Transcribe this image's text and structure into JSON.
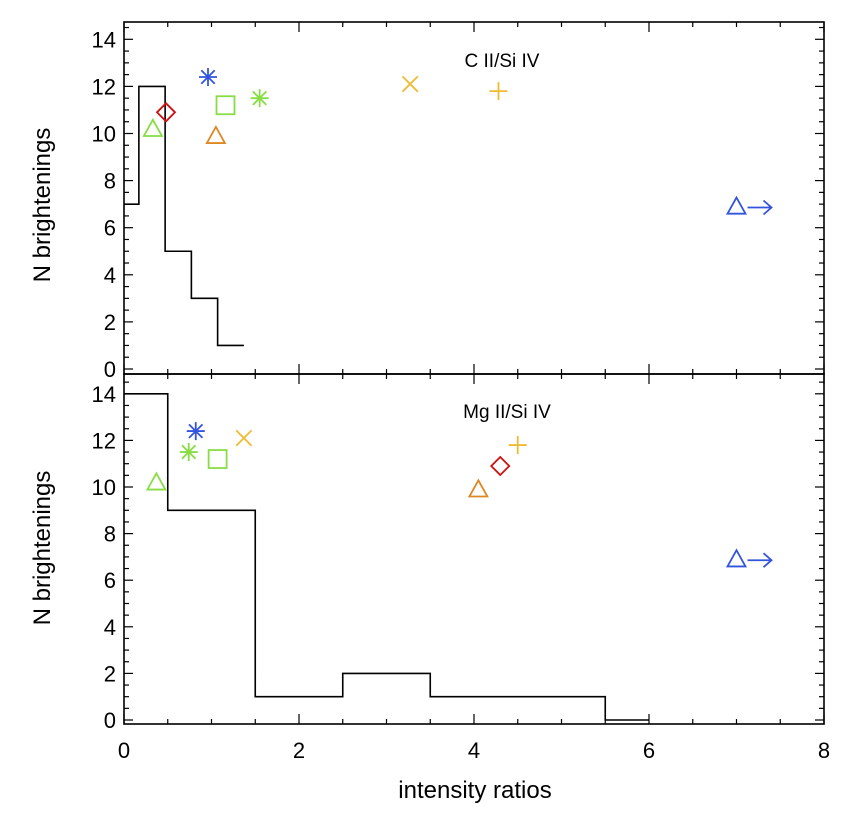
{
  "chart_data": [
    {
      "type": "histogram",
      "title": "C II/Si IV",
      "xlabel": "",
      "ylabel": "N brightenings",
      "xlim": [
        0,
        8
      ],
      "ylim": [
        0,
        15
      ],
      "xticks": [
        "0",
        "2",
        "4",
        "6",
        "8"
      ],
      "yticks": [
        "0",
        "2",
        "4",
        "6",
        "8",
        "10",
        "12",
        "14"
      ],
      "histogram": {
        "bin_edges": [
          0,
          0.17,
          0.47,
          0.77,
          1.07,
          1.37
        ],
        "counts": [
          7,
          12,
          5,
          3,
          1
        ]
      },
      "markers": [
        {
          "symbol": "triangle",
          "color": "#88dd44",
          "x": 0.33,
          "y": 10.2
        },
        {
          "symbol": "diamond",
          "color": "#cc1111",
          "x": 0.48,
          "y": 10.9
        },
        {
          "symbol": "asterisk",
          "color": "#3355dd",
          "x": 0.96,
          "y": 12.4
        },
        {
          "symbol": "triangle",
          "color": "#dd8822",
          "x": 1.05,
          "y": 9.9
        },
        {
          "symbol": "square",
          "color": "#88dd44",
          "x": 1.16,
          "y": 11.2
        },
        {
          "symbol": "asterisk",
          "color": "#88dd44",
          "x": 1.55,
          "y": 11.5
        },
        {
          "symbol": "x",
          "color": "#eebb33",
          "x": 3.27,
          "y": 12.1
        },
        {
          "symbol": "plus",
          "color": "#eebb33",
          "x": 4.28,
          "y": 11.8
        },
        {
          "symbol": "triangle-arrow",
          "color": "#3355dd",
          "x": 7.0,
          "y": 6.9
        }
      ]
    },
    {
      "type": "histogram",
      "title": "Mg II/Si IV",
      "xlabel": "intensity ratios",
      "ylabel": "N brightenings",
      "xlim": [
        0,
        8
      ],
      "ylim": [
        0,
        15
      ],
      "xticks": [
        "0",
        "2",
        "4",
        "6",
        "8"
      ],
      "yticks": [
        "0",
        "2",
        "4",
        "6",
        "8",
        "10",
        "12",
        "14"
      ],
      "histogram": {
        "bin_edges": [
          0,
          0.5,
          1.5,
          2.5,
          3.5,
          5.5,
          6.0
        ],
        "counts": [
          14,
          9,
          1,
          2,
          1,
          0
        ]
      },
      "markers": [
        {
          "symbol": "triangle",
          "color": "#88dd44",
          "x": 0.37,
          "y": 10.2
        },
        {
          "symbol": "asterisk",
          "color": "#3355dd",
          "x": 0.82,
          "y": 12.4
        },
        {
          "symbol": "asterisk",
          "color": "#88dd44",
          "x": 0.74,
          "y": 11.5
        },
        {
          "symbol": "square",
          "color": "#88dd44",
          "x": 1.07,
          "y": 11.2
        },
        {
          "symbol": "x",
          "color": "#eebb33",
          "x": 1.37,
          "y": 12.1
        },
        {
          "symbol": "triangle",
          "color": "#dd8822",
          "x": 4.05,
          "y": 9.9
        },
        {
          "symbol": "diamond",
          "color": "#cc1111",
          "x": 4.3,
          "y": 10.9
        },
        {
          "symbol": "plus",
          "color": "#eebb33",
          "x": 4.5,
          "y": 11.8
        },
        {
          "symbol": "triangle-arrow",
          "color": "#3355dd",
          "x": 7.0,
          "y": 6.9
        }
      ]
    }
  ]
}
